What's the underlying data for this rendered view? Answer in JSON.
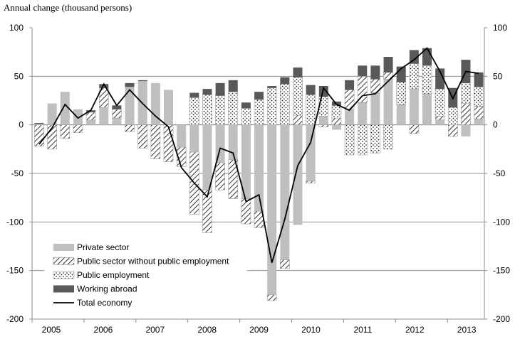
{
  "chart_data": {
    "type": "bar",
    "stacked": true,
    "title": "Annual change (thousand persons)",
    "xlabel": "",
    "ylabel": "Annual change (thousand persons)",
    "ylim": [
      -200,
      100
    ],
    "yticks": [
      100,
      50,
      0,
      -50,
      -100,
      -150,
      -200
    ],
    "grid": true,
    "legend_position": "bottom-left",
    "year_labels": [
      "2005",
      "2006",
      "2007",
      "2008",
      "2009",
      "2010",
      "2011",
      "2012",
      "2013"
    ],
    "series": [
      {
        "name": "Private sector",
        "key": "private",
        "color": "#bfbfbf",
        "values": [
          1,
          22,
          34,
          16,
          5,
          18,
          7,
          39,
          45,
          43,
          36,
          -23,
          -28,
          -67,
          -39,
          -36,
          -76,
          -89,
          -175,
          -139,
          -103,
          -58,
          9,
          -5,
          16,
          23,
          33,
          47,
          21,
          37,
          32,
          5,
          0,
          -12,
          6
        ]
      },
      {
        "name": "Public sector without public employment",
        "key": "hatch",
        "color": "#000000",
        "values": [
          -22,
          -25,
          -14,
          -8,
          8,
          20,
          9,
          -7,
          -24,
          -35,
          -38,
          -20,
          -64,
          -44,
          -28,
          -40,
          -26,
          -17,
          -6,
          -9,
          10,
          -2,
          -2,
          7,
          20,
          27,
          14,
          7,
          0,
          -9,
          0,
          4,
          -12,
          22,
          13
        ]
      },
      {
        "name": "Public employment",
        "key": "dots",
        "color": "#000000",
        "values": [
          0,
          0,
          0,
          0,
          0,
          0,
          0,
          0,
          0,
          0,
          0,
          0,
          28,
          31,
          30,
          34,
          17,
          26,
          38,
          42,
          39,
          31,
          20,
          13,
          -31,
          -31,
          -29,
          -25,
          23,
          26,
          29,
          28,
          18,
          21,
          20
        ]
      },
      {
        "name": "Working abroad",
        "key": "abroad",
        "color": "#595959",
        "values": [
          1,
          0,
          0,
          0,
          2,
          4,
          4,
          4,
          1,
          0,
          0,
          0,
          5,
          6,
          13,
          12,
          6,
          8,
          2,
          7,
          10,
          10,
          11,
          4,
          10,
          11,
          14,
          16,
          16,
          14,
          18,
          21,
          20,
          24,
          15
        ]
      },
      {
        "name": "Total economy",
        "key": "total",
        "type": "line",
        "color": "#000000",
        "values": [
          -20,
          -3,
          21,
          7,
          15,
          42,
          20,
          36,
          22,
          9,
          -2,
          -44,
          -60,
          -74,
          -24,
          -29,
          -79,
          -72,
          -142,
          -97,
          -42,
          -18,
          38,
          21,
          15,
          30,
          32,
          45,
          58,
          67,
          79,
          55,
          27,
          55,
          53
        ]
      }
    ]
  }
}
